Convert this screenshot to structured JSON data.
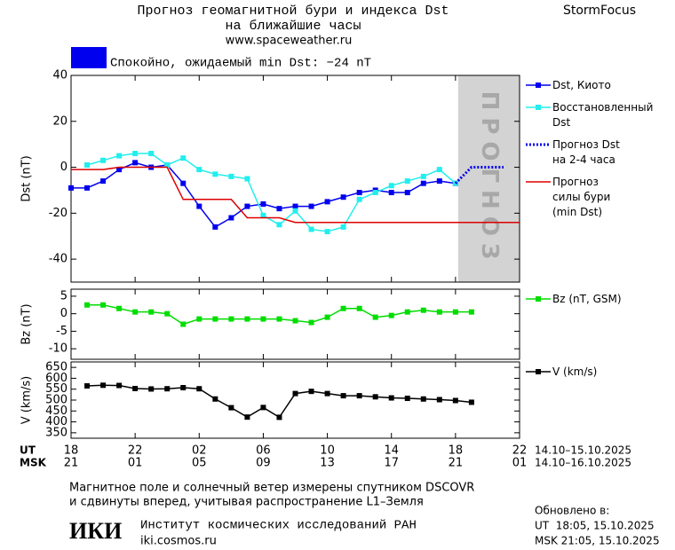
{
  "header": {
    "title": "Прогноз геомагнитной бури и индекса Dst",
    "subtitle": "на ближайшие часы",
    "url": "www.spaceweather.ru",
    "brand": "StormFocus"
  },
  "status": {
    "text": "Спокойно, ожидаемый min Dst: −24 nT",
    "color": "#0000ee"
  },
  "chart_data": [
    {
      "type": "line",
      "ylabel": "Dst (nT)",
      "x": [
        18,
        19,
        20,
        21,
        22,
        23,
        24,
        25,
        26,
        27,
        28,
        29,
        30,
        31,
        32,
        33,
        34,
        35,
        36,
        37,
        38,
        39,
        40,
        41,
        42,
        43,
        44,
        45,
        46
      ],
      "xlim": [
        18,
        46
      ],
      "xticks": [
        18,
        22,
        26,
        30,
        34,
        38,
        42,
        46
      ],
      "ylim": [
        -50,
        40
      ],
      "yticks": [
        -40,
        -20,
        0,
        20,
        40
      ],
      "forecast_region": {
        "label": "ПРОГНОЗ",
        "xlim": [
          42,
          46
        ],
        "color": "#d3d3d3"
      },
      "series": [
        {
          "name": "Dst, Киото",
          "color": "#0000ee",
          "marker": "square",
          "dash": false,
          "values": [
            -9,
            -9,
            -6,
            -1,
            2,
            0,
            1,
            -7,
            -17,
            -26,
            -22,
            -17,
            -16,
            -18,
            -17,
            -17,
            -15,
            -13,
            -11,
            -10,
            -11,
            -11,
            -7,
            -6,
            -7,
            null,
            null,
            null,
            null
          ]
        },
        {
          "name": "Восстановленный\nDst",
          "color": "#22eeee",
          "marker": "square",
          "dash": false,
          "values": [
            null,
            1,
            3,
            5,
            6,
            6,
            1,
            4,
            -1,
            -3,
            -4,
            -5,
            -21,
            -25,
            -19,
            -27,
            -28,
            -26,
            -14,
            -11,
            -8,
            -6,
            -4,
            -1,
            -7,
            null,
            null,
            null,
            null
          ]
        },
        {
          "name": "Прогноз Dst\nна 2-4 часа",
          "color": "#0000ee",
          "marker": "none",
          "dash": true,
          "values": [
            null,
            null,
            null,
            null,
            null,
            null,
            null,
            null,
            null,
            null,
            null,
            null,
            null,
            null,
            null,
            null,
            null,
            null,
            null,
            null,
            null,
            null,
            null,
            null,
            -7,
            0,
            0,
            0,
            null
          ]
        },
        {
          "name": "Прогноз\nсилы бури\n(min Dst)",
          "color": "#dd0000",
          "marker": "none",
          "dash": false,
          "values": [
            -1,
            -1,
            -1,
            0,
            0,
            0,
            0,
            -14,
            -14,
            -14,
            -14,
            -22,
            -22,
            -22,
            -24,
            -24,
            -24,
            -24,
            -24,
            -24,
            -24,
            -24,
            -24,
            -24,
            -24,
            -24,
            -24,
            -24,
            -24
          ]
        }
      ]
    },
    {
      "type": "line",
      "ylabel": "Bz (nT)",
      "x": [
        19,
        20,
        21,
        22,
        23,
        24,
        25,
        26,
        27,
        28,
        29,
        30,
        31,
        32,
        33,
        34,
        35,
        36,
        37,
        38,
        39,
        40,
        41,
        42,
        43
      ],
      "xlim": [
        18,
        46
      ],
      "xticks": [
        18,
        22,
        26,
        30,
        34,
        38,
        42,
        46
      ],
      "ylim": [
        -13,
        7
      ],
      "yticks": [
        5,
        0,
        -5,
        -10
      ],
      "series": [
        {
          "name": "Bz (nT, GSM)",
          "color": "#00dd00",
          "marker": "square",
          "dash": false,
          "values": [
            2.5,
            2.5,
            1.5,
            0.5,
            0.5,
            0,
            -3,
            -1.5,
            -1.5,
            -1.5,
            -1.5,
            -1.5,
            -1.5,
            -2,
            -2.5,
            -1,
            1.5,
            1.5,
            -1,
            -0.5,
            0.5,
            1,
            0.5,
            0.5,
            0.5
          ]
        }
      ]
    },
    {
      "type": "line",
      "ylabel": "V (km/s)",
      "x": [
        19,
        20,
        21,
        22,
        23,
        24,
        25,
        26,
        27,
        28,
        29,
        30,
        31,
        32,
        33,
        34,
        35,
        36,
        37,
        38,
        39,
        40,
        41,
        42,
        43
      ],
      "xlim": [
        18,
        46
      ],
      "xlabel": "UT",
      "xticks": [
        18,
        22,
        {
          "value": 26,
          "label": "02"
        },
        {
          "value": 30,
          "label": "06"
        },
        {
          "value": 34,
          "label": "10"
        },
        {
          "value": 38,
          "label": "14"
        },
        {
          "value": 42,
          "label": "18"
        },
        {
          "value": 46,
          "label": "22"
        }
      ],
      "xrange_label": "14.10–15.10.2025",
      "x2label": "MSK",
      "x2ticks": [
        {
          "value": 18,
          "label": "21"
        },
        {
          "value": 22,
          "label": "01"
        },
        {
          "value": 26,
          "label": "05"
        },
        {
          "value": 30,
          "label": "09"
        },
        {
          "value": 34,
          "label": "13"
        },
        {
          "value": 38,
          "label": "17"
        },
        {
          "value": 42,
          "label": "21"
        },
        {
          "value": 46,
          "label": "01"
        }
      ],
      "x2range_label": "14.10–16.10.2025",
      "ylim": [
        325,
        675
      ],
      "yticks": [
        350,
        400,
        450,
        500,
        550,
        600,
        650
      ],
      "series": [
        {
          "name": "V (km/s)",
          "color": "#000000",
          "marker": "square",
          "dash": false,
          "values": [
            565,
            568,
            567,
            553,
            551,
            552,
            557,
            552,
            505,
            465,
            422,
            466,
            421,
            530,
            540,
            530,
            520,
            520,
            515,
            510,
            508,
            505,
            502,
            498,
            490
          ]
        }
      ]
    }
  ],
  "footer": {
    "note_1": "Магнитное поле и солнечный ветер измерены спутником DSCOVR",
    "note_2": "и сдвинуты вперед, учитывая распространение L1–Земля",
    "logo": "ИКИ",
    "institute": "Институт космических исследований РАН",
    "site": "iki.cosmos.ru",
    "updated": "Обновлено в:",
    "updated_ut": "UT  18:05, 15.10.2025",
    "updated_msk": "MSK 21:05, 15.10.2025"
  }
}
